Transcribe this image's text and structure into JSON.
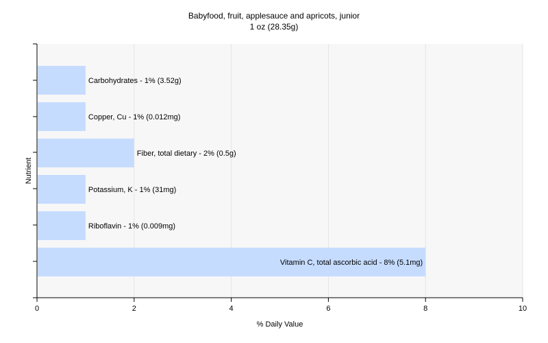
{
  "chart_data": {
    "type": "bar",
    "orientation": "horizontal",
    "title": "Babyfood, fruit, applesauce and apricots, junior",
    "subtitle": "1 oz (28.35g)",
    "xlabel": "% Daily Value",
    "ylabel": "Nutrient",
    "xlim": [
      0,
      10
    ],
    "xticks": [
      0,
      2,
      4,
      6,
      8,
      10
    ],
    "grid": true,
    "categories": [
      "Carbohydrates",
      "Copper, Cu",
      "Fiber, total dietary",
      "Potassium, K",
      "Riboflavin",
      "Vitamin C, total ascorbic acid"
    ],
    "values": [
      1,
      1,
      2,
      1,
      1,
      8
    ],
    "data_labels": [
      "Carbohydrates - 1% (3.52g)",
      "Copper, Cu - 1% (0.012mg)",
      "Fiber, total dietary - 2% (0.5g)",
      "Potassium, K - 1% (31mg)",
      "Riboflavin - 1% (0.009mg)",
      "Vitamin C, total ascorbic acid - 8% (5.1mg)"
    ],
    "colors": {
      "bar": "#c6dcff",
      "plot_background": "#f7f7f7",
      "grid": "#ffffff",
      "axis": "#000000"
    }
  }
}
